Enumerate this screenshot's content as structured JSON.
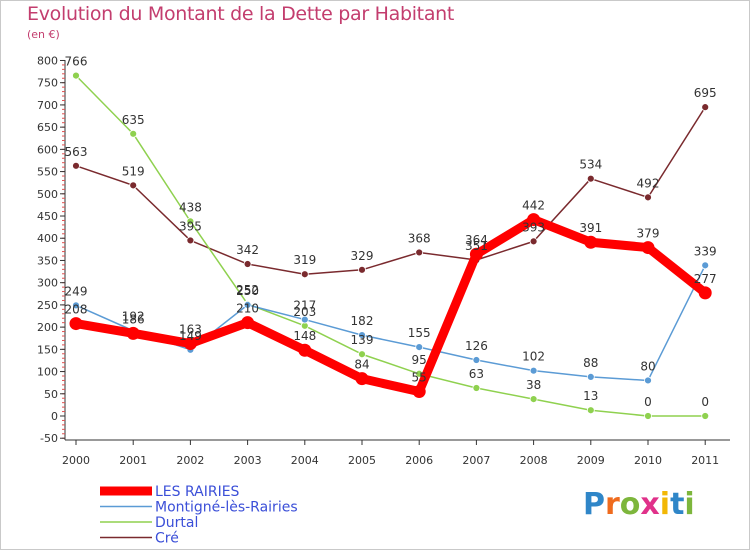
{
  "title": "Evolution du Montant de la Dette par Habitant",
  "subtitle": "(en €)",
  "logo_text": "Proxiti",
  "chart_data": {
    "type": "line",
    "x": [
      "2000",
      "2001",
      "2002",
      "2003",
      "2004",
      "2005",
      "2006",
      "2007",
      "2008",
      "2009",
      "2010",
      "2011"
    ],
    "ylim": [
      -50,
      800
    ],
    "yticks": [
      -50,
      0,
      50,
      100,
      150,
      200,
      250,
      300,
      350,
      400,
      450,
      500,
      550,
      600,
      650,
      700,
      750,
      800
    ],
    "grid": false,
    "legend": "bottom-left",
    "series": [
      {
        "name": "Cré",
        "color": "#7a2a2e",
        "values": [
          563,
          519,
          395,
          342,
          319,
          329,
          368,
          351,
          393,
          534,
          492,
          695
        ]
      },
      {
        "name": "Durtal",
        "color": "#8fd14f",
        "values": [
          766,
          635,
          438,
          252,
          203,
          139,
          95,
          63,
          38,
          13,
          0,
          0
        ]
      },
      {
        "name": "Montigné-lès-Rairies",
        "color": "#5b9bd5",
        "values": [
          249,
          192,
          149,
          250,
          217,
          182,
          155,
          126,
          102,
          88,
          80,
          339
        ]
      },
      {
        "name": "LES RAIRIES",
        "color": "#ff0000",
        "values": [
          208,
          186,
          163,
          210,
          148,
          84,
          55,
          364,
          442,
          391,
          379,
          277
        ]
      }
    ],
    "legend_order": [
      "LES RAIRIES",
      "Montigné-lès-Rairies",
      "Durtal",
      "Cré"
    ]
  }
}
